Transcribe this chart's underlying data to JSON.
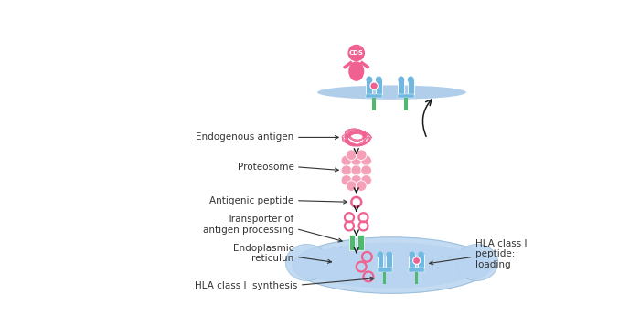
{
  "bg_color": "#ffffff",
  "labels": {
    "endogenous_antigen": "Endogenous antigen",
    "proteosome": "Proteosome",
    "antigenic_peptide": "Antigenic peptide",
    "transporter": "Transporter of\nantigen processing",
    "endoplasmic": "Endoplasmic\nreticulun",
    "hla_synthesis": "HLA class Ⅰ  synthesis",
    "hla_loading": "HLA class Ⅰ\npeptide:\nloading",
    "cds": "CDS"
  },
  "pink": "#f06090",
  "pink_fill": "#f080a8",
  "pink_light": "#f4a0b8",
  "blue": "#70b8e0",
  "blue_dark": "#5aa0cc",
  "green": "#50b870",
  "dark": "#333333",
  "arrow_color": "#1a1a1a",
  "mem_color": "#a8c8e8",
  "er_color": "#b8d4f0"
}
